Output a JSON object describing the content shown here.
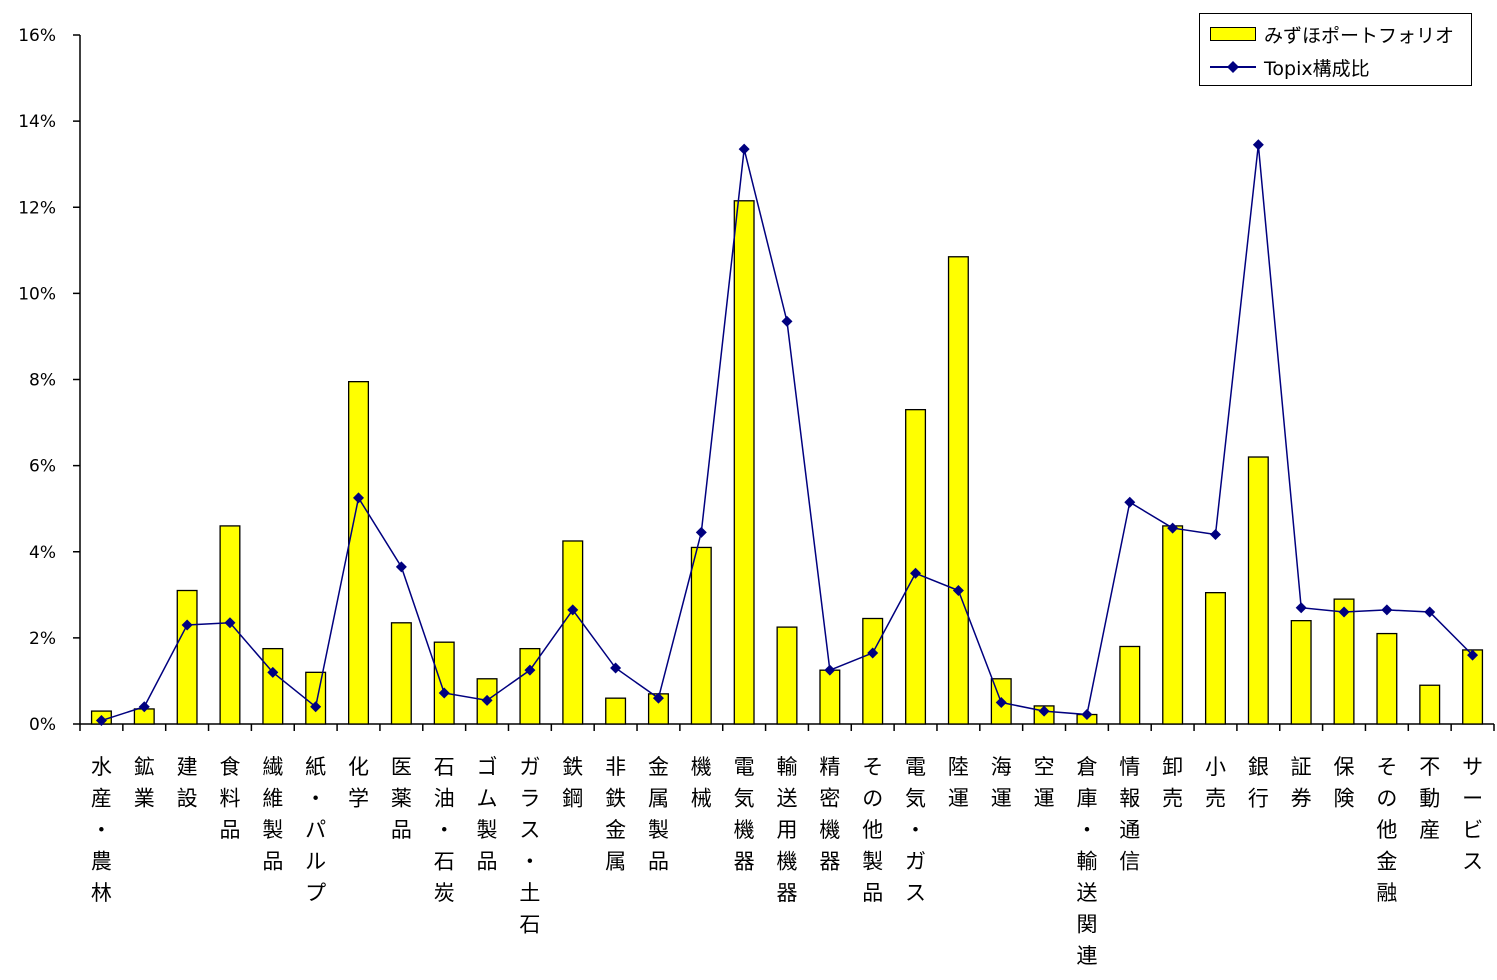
{
  "chart_data": {
    "type": "bar",
    "categories": [
      "水産・農林",
      "鉱業",
      "建設",
      "食料品",
      "繊維製品",
      "紙・パルプ",
      "化学",
      "医薬品",
      "石油・石炭",
      "ゴム製品",
      "ガラス・土石",
      "鉄鋼",
      "非鉄金属",
      "金属製品",
      "機械",
      "電気機器",
      "輸送用機器",
      "精密機器",
      "その他製品",
      "電気・ガス",
      "陸運",
      "海運",
      "空運",
      "倉庫・輸送関連",
      "情報通信",
      "卸売",
      "小売",
      "銀行",
      "証券",
      "保険",
      "その他金融",
      "不動産",
      "サービス"
    ],
    "series": [
      {
        "name": "みずほポートフォリオ",
        "type": "bar",
        "color": "#ffff00",
        "values": [
          0.3,
          0.35,
          3.1,
          4.6,
          1.75,
          1.2,
          7.95,
          2.35,
          1.9,
          1.05,
          1.75,
          4.25,
          0.6,
          0.7,
          4.1,
          12.15,
          2.25,
          1.25,
          2.45,
          7.3,
          10.85,
          1.05,
          0.42,
          0.22,
          1.8,
          4.6,
          3.05,
          6.2,
          2.4,
          2.9,
          2.1,
          0.9,
          1.72
        ]
      },
      {
        "name": "Topix構成比",
        "type": "line",
        "color": "#00007f",
        "values": [
          0.08,
          0.4,
          2.3,
          2.35,
          1.2,
          0.4,
          5.25,
          3.65,
          0.72,
          0.55,
          1.25,
          2.65,
          1.3,
          0.6,
          4.45,
          13.35,
          9.35,
          1.25,
          1.65,
          3.5,
          3.1,
          0.5,
          0.3,
          0.22,
          5.15,
          4.55,
          4.4,
          13.45,
          2.7,
          2.6,
          2.65,
          2.6,
          1.6
        ]
      }
    ],
    "y_ticks": [
      "0%",
      "2%",
      "4%",
      "6%",
      "8%",
      "10%",
      "12%",
      "14%",
      "16%"
    ],
    "ylim": [
      0,
      16
    ],
    "legend_position": "top-right",
    "grid": false
  }
}
